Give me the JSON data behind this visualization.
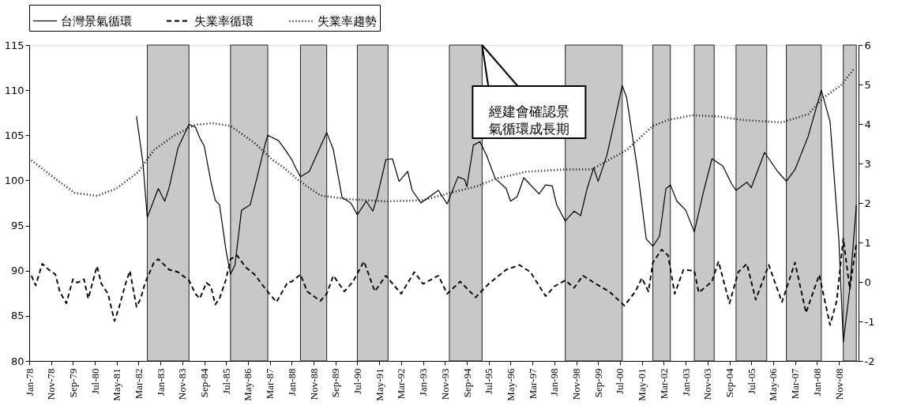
{
  "chart_data": {
    "type": "line",
    "legend": "top",
    "grid": false,
    "xlim": [
      "1978-01",
      "2009-08"
    ],
    "xticks": [
      {
        "value": "1978-01",
        "label": "Jan-78"
      },
      {
        "value": "1978-11",
        "label": "Nov-78"
      },
      {
        "value": "1979-09",
        "label": "Sep-79"
      },
      {
        "value": "1980-07",
        "label": "Jul-80"
      },
      {
        "value": "1981-05",
        "label": "May-81"
      },
      {
        "value": "1982-03",
        "label": "Mar-82"
      },
      {
        "value": "1983-01",
        "label": "Jan-83"
      },
      {
        "value": "1983-11",
        "label": "Nov-83"
      },
      {
        "value": "1984-09",
        "label": "Sep-84"
      },
      {
        "value": "1985-07",
        "label": "Jul-85"
      },
      {
        "value": "1986-05",
        "label": "May-86"
      },
      {
        "value": "1987-03",
        "label": "Mar-87"
      },
      {
        "value": "1988-01",
        "label": "Jan-88"
      },
      {
        "value": "1988-11",
        "label": "Nov-88"
      },
      {
        "value": "1989-09",
        "label": "Sep-89"
      },
      {
        "value": "1990-07",
        "label": "Jul-90"
      },
      {
        "value": "1991-05",
        "label": "May-91"
      },
      {
        "value": "1992-03",
        "label": "Mar-92"
      },
      {
        "value": "1993-01",
        "label": "Jan-93"
      },
      {
        "value": "1993-11",
        "label": "Nov-93"
      },
      {
        "value": "1994-09",
        "label": "Sep-94"
      },
      {
        "value": "1995-07",
        "label": "Jul-95"
      },
      {
        "value": "1996-05",
        "label": "May-96"
      },
      {
        "value": "1997-03",
        "label": "Mar-97"
      },
      {
        "value": "1998-01",
        "label": "Jan-98"
      },
      {
        "value": "1998-11",
        "label": "Nov-98"
      },
      {
        "value": "1999-09",
        "label": "Sep-99"
      },
      {
        "value": "2000-07",
        "label": "Jul-00"
      },
      {
        "value": "2001-05",
        "label": "May-01"
      },
      {
        "value": "2002-03",
        "label": "Mar-02"
      },
      {
        "value": "2003-01",
        "label": "Jan-03"
      },
      {
        "value": "2003-11",
        "label": "Nov-03"
      },
      {
        "value": "2004-09",
        "label": "Sep-04"
      },
      {
        "value": "2005-07",
        "label": "Jul-05"
      },
      {
        "value": "2006-05",
        "label": "May-06"
      },
      {
        "value": "2007-03",
        "label": "Mar-07"
      },
      {
        "value": "2008-01",
        "label": "Jan-08"
      },
      {
        "value": "2008-11",
        "label": "Nov-08"
      }
    ],
    "ylim": [
      80,
      115
    ],
    "yticks": [
      80,
      85,
      90,
      95,
      100,
      105,
      110,
      115
    ],
    "y2lim": [
      -2,
      6
    ],
    "y2ticks": [
      -2,
      -1,
      0,
      1,
      2,
      3,
      4,
      5,
      6
    ],
    "bands": [
      {
        "axis": "x",
        "from": "1982-07",
        "to": "1984-02",
        "color": "#c8c8c8"
      },
      {
        "axis": "x",
        "from": "1985-09",
        "to": "1987-02",
        "color": "#c8c8c8"
      },
      {
        "axis": "x",
        "from": "1988-05",
        "to": "1989-05",
        "color": "#c8c8c8"
      },
      {
        "axis": "x",
        "from": "1990-07",
        "to": "1991-09",
        "color": "#c8c8c8"
      },
      {
        "axis": "x",
        "from": "1994-01",
        "to": "1995-04",
        "color": "#c8c8c8"
      },
      {
        "axis": "x",
        "from": "1998-06",
        "to": "2000-08",
        "color": "#c8c8c8"
      },
      {
        "axis": "x",
        "from": "2001-10",
        "to": "2002-06",
        "color": "#c8c8c8"
      },
      {
        "axis": "x",
        "from": "2003-05",
        "to": "2004-02",
        "color": "#c8c8c8"
      },
      {
        "axis": "x",
        "from": "2004-12",
        "to": "2006-02",
        "color": "#c8c8c8"
      },
      {
        "axis": "x",
        "from": "2006-11",
        "to": "2008-03",
        "color": "#c8c8c8"
      },
      {
        "axis": "x",
        "from": "2009-01",
        "to": "2009-07",
        "color": "#c8c8c8"
      }
    ],
    "annotations": [
      {
        "text": "經建會確認景氣循環成長期",
        "x": "1995-04",
        "y": 115
      }
    ],
    "series": [
      {
        "name": "台灣景氣循環",
        "color": "#000000",
        "line_style": "solid",
        "axis": "y",
        "x": [
          "1982-02",
          "1982-05",
          "1982-07",
          "1982-12",
          "1983-03",
          "1983-05",
          "1983-09",
          "1984-02",
          "1984-05",
          "1984-07",
          "1984-09",
          "1984-12",
          "1985-02",
          "1985-04",
          "1985-07",
          "1985-09",
          "1985-11",
          "1986-02",
          "1986-06",
          "1986-09",
          "1987-01",
          "1987-02",
          "1987-07",
          "1987-10",
          "1988-01",
          "1988-03",
          "1988-05",
          "1988-09",
          "1989-05",
          "1989-08",
          "1989-12",
          "1990-04",
          "1990-07",
          "1990-11",
          "1991-02",
          "1991-04",
          "1991-08",
          "1991-11",
          "1992-02",
          "1992-06",
          "1992-08",
          "1992-12",
          "1993-04",
          "1993-08",
          "1993-12",
          "1994-05",
          "1994-08",
          "1994-09",
          "1994-12",
          "1995-03",
          "1995-06",
          "1995-10",
          "1996-03",
          "1996-05",
          "1996-08",
          "1996-11",
          "1997-06",
          "1997-09",
          "1997-12",
          "1998-02",
          "1998-06",
          "1998-10",
          "1999-01",
          "1999-04",
          "1999-07",
          "1999-09",
          "2000-01",
          "2000-05",
          "2000-08",
          "2000-10",
          "2001-03",
          "2001-07",
          "2001-10",
          "2002-01",
          "2002-04",
          "2002-06",
          "2002-09",
          "2003-01",
          "2003-05",
          "2003-09",
          "2004-01",
          "2004-06",
          "2004-10",
          "2004-12",
          "2005-05",
          "2005-07",
          "2006-01",
          "2006-07",
          "2006-11",
          "2007-03",
          "2007-09",
          "2008-03",
          "2008-07",
          "2008-11",
          "2009-01",
          "2009-04",
          "2009-07"
        ],
        "values": [
          107.1,
          102.0,
          95.9,
          99.1,
          97.7,
          99.2,
          103.6,
          106.2,
          105.9,
          104.7,
          103.8,
          99.9,
          97.8,
          97.3,
          92.2,
          89.6,
          90.6,
          96.7,
          97.3,
          100.2,
          104.2,
          105.0,
          104.4,
          103.4,
          102.3,
          101.3,
          100.4,
          101.0,
          105.3,
          103.4,
          98.1,
          97.5,
          96.2,
          97.7,
          96.6,
          98.1,
          102.3,
          102.4,
          99.9,
          101.0,
          98.9,
          97.5,
          98.2,
          98.9,
          97.4,
          100.4,
          100.1,
          99.3,
          103.9,
          104.3,
          102.8,
          100.2,
          99.1,
          97.7,
          98.2,
          100.3,
          98.5,
          99.5,
          99.4,
          97.3,
          95.5,
          96.6,
          96.1,
          99.1,
          101.4,
          99.9,
          102.8,
          107.1,
          110.5,
          109.2,
          101.2,
          93.5,
          92.7,
          93.8,
          99.1,
          99.5,
          97.7,
          96.7,
          94.3,
          98.6,
          102.4,
          101.6,
          99.6,
          98.9,
          99.8,
          99.2,
          103.1,
          101.0,
          99.9,
          101.2,
          104.9,
          110.0,
          106.5,
          93.3,
          82.1,
          88.0,
          97.3
        ]
      },
      {
        "name": "失業率循環",
        "color": "#000000",
        "line_style": "dashed",
        "axis": "y2",
        "x": [
          "1978-02",
          "1978-04",
          "1978-07",
          "1978-10",
          "1979-01",
          "1979-03",
          "1979-06",
          "1979-09",
          "1979-11",
          "1980-02",
          "1980-04",
          "1980-08",
          "1980-10",
          "1981-01",
          "1981-04",
          "1981-06",
          "1981-09",
          "1981-11",
          "1982-02",
          "1982-04",
          "1982-06",
          "1982-10",
          "1982-12",
          "1983-05",
          "1983-09",
          "1984-02",
          "1984-05",
          "1984-07",
          "1984-10",
          "1984-12",
          "1985-02",
          "1985-04",
          "1985-07",
          "1985-09",
          "1985-12",
          "1986-04",
          "1986-08",
          "1987-01",
          "1987-06",
          "1987-11",
          "1988-01",
          "1988-05",
          "1988-08",
          "1989-02",
          "1989-05",
          "1989-08",
          "1990-01",
          "1990-05",
          "1990-10",
          "1991-03",
          "1991-08",
          "1992-03",
          "1992-09",
          "1993-01",
          "1993-08",
          "1993-12",
          "1994-06",
          "1995-01",
          "1995-07",
          "1996-03",
          "1996-09",
          "1997-02",
          "1997-09",
          "1998-01",
          "1998-06",
          "1998-10",
          "1999-02",
          "1999-08",
          "2000-02",
          "2000-09",
          "2001-02",
          "2001-05",
          "2001-08",
          "2001-10",
          "2002-02",
          "2002-05",
          "2002-08",
          "2002-12",
          "2003-05",
          "2003-07",
          "2004-01",
          "2004-04",
          "2004-09",
          "2005-01",
          "2005-05",
          "2005-09",
          "2006-03",
          "2006-09",
          "2007-03",
          "2007-08",
          "2008-02",
          "2008-07",
          "2008-10",
          "2009-01",
          "2009-04",
          "2009-07"
        ],
        "values": [
          0.16,
          -0.09,
          0.46,
          0.31,
          0.19,
          -0.24,
          -0.54,
          0.07,
          -0.02,
          0.07,
          -0.42,
          0.4,
          -0.05,
          -0.3,
          -0.99,
          -0.66,
          -0.05,
          0.28,
          -0.63,
          -0.42,
          -0.02,
          0.49,
          0.58,
          0.31,
          0.25,
          0.04,
          -0.3,
          -0.42,
          -0.02,
          -0.11,
          -0.57,
          -0.42,
          0.07,
          0.58,
          0.67,
          0.37,
          0.19,
          -0.18,
          -0.51,
          -0.02,
          0.01,
          0.19,
          -0.24,
          -0.48,
          -0.3,
          0.16,
          -0.24,
          0.01,
          0.52,
          -0.24,
          0.16,
          -0.3,
          0.25,
          -0.05,
          0.16,
          -0.3,
          0.01,
          -0.39,
          -0.05,
          0.31,
          0.43,
          0.25,
          -0.36,
          -0.11,
          0.04,
          -0.15,
          0.16,
          -0.05,
          -0.24,
          -0.6,
          -0.24,
          0.1,
          -0.24,
          0.49,
          0.82,
          0.67,
          -0.3,
          0.31,
          0.28,
          -0.27,
          0.01,
          0.52,
          -0.54,
          0.25,
          0.46,
          -0.45,
          0.43,
          -0.51,
          0.49,
          -0.78,
          0.18,
          -1.09,
          -0.48,
          1.1,
          -0.18,
          0.98
        ]
      },
      {
        "name": "失業率趨勢",
        "color": "#000000",
        "line_style": "dotted",
        "axis": "y2",
        "x": [
          "1978-02",
          "1979-01",
          "1979-10",
          "1980-08",
          "1981-05",
          "1982-03",
          "1982-10",
          "1983-07",
          "1984-05",
          "1985-01",
          "1985-09",
          "1986-08",
          "1987-04",
          "1987-09",
          "1988-04",
          "1989-02",
          "1990-02",
          "1991-08",
          "1993-01",
          "1994-01",
          "1995-02",
          "1995-10",
          "1996-12",
          "1998-06",
          "1999-06",
          "1999-11",
          "2000-10",
          "2001-10",
          "2002-05",
          "2003-04",
          "2004-04",
          "2005-03",
          "2006-09",
          "2007-09",
          "2008-04",
          "2008-12",
          "2009-06"
        ],
        "values": [
          3.08,
          2.61,
          2.25,
          2.18,
          2.37,
          2.79,
          3.34,
          3.7,
          3.98,
          4.02,
          3.95,
          3.52,
          3.1,
          2.91,
          2.58,
          2.19,
          2.1,
          2.04,
          2.07,
          2.25,
          2.43,
          2.61,
          2.79,
          2.85,
          2.85,
          3.0,
          3.34,
          3.95,
          4.1,
          4.22,
          4.19,
          4.1,
          4.04,
          4.25,
          4.67,
          4.98,
          5.4
        ]
      }
    ]
  }
}
